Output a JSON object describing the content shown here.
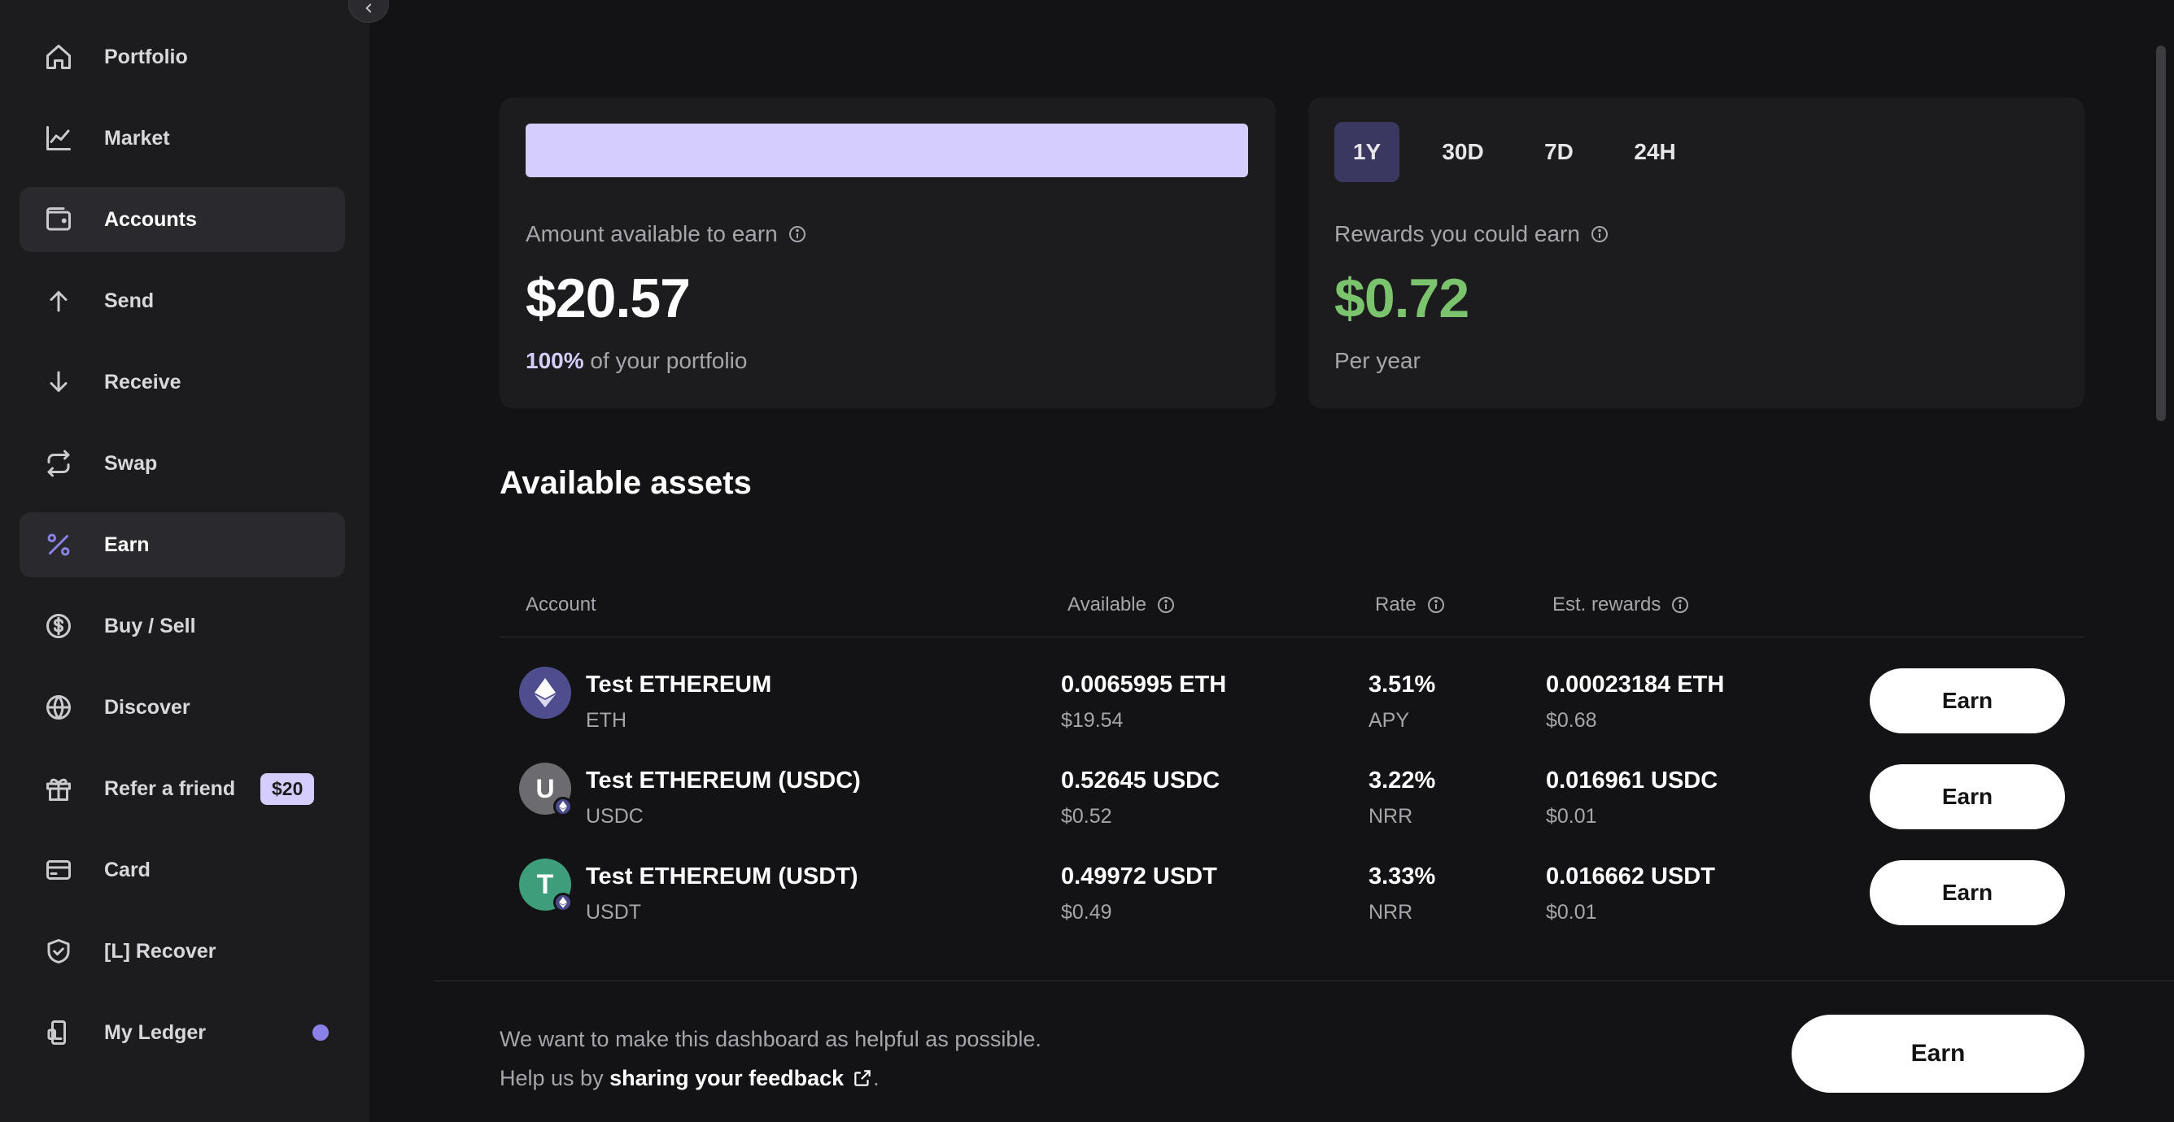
{
  "sidebar": {
    "items": [
      {
        "label": "Portfolio",
        "icon": "home-icon"
      },
      {
        "label": "Market",
        "icon": "chart-icon"
      },
      {
        "label": "Accounts",
        "icon": "wallet-icon"
      },
      {
        "label": "Send",
        "icon": "arrow-up-icon"
      },
      {
        "label": "Receive",
        "icon": "arrow-down-icon"
      },
      {
        "label": "Swap",
        "icon": "swap-icon"
      },
      {
        "label": "Earn",
        "icon": "percent-icon"
      },
      {
        "label": "Buy / Sell",
        "icon": "dollar-icon"
      },
      {
        "label": "Discover",
        "icon": "globe-icon"
      },
      {
        "label": "Refer a friend",
        "icon": "gift-icon",
        "badge": "$20"
      },
      {
        "label": "Card",
        "icon": "card-icon"
      },
      {
        "label": "[L] Recover",
        "icon": "shield-icon"
      },
      {
        "label": "My Ledger",
        "icon": "device-icon"
      }
    ]
  },
  "summary": {
    "available_label": "Amount available to earn",
    "available_amount": "$20.57",
    "portfolio_pct": "100%",
    "portfolio_suffix": " of your portfolio",
    "available_fraction": 1.0,
    "rewards_label": "Rewards you could earn",
    "rewards_amount": "$0.72",
    "rewards_period": "Per year",
    "tabs": [
      "1Y",
      "30D",
      "7D",
      "24H"
    ],
    "active_tab": "1Y"
  },
  "assets": {
    "title": "Available assets",
    "columns": [
      "Account",
      "Available",
      "Rate",
      "Est. rewards"
    ],
    "rows": [
      {
        "name": "Test ETHEREUM",
        "ticker": "ETH",
        "avatar_letter": "",
        "available": "0.0065995 ETH",
        "available_usd": "$19.54",
        "rate": "3.51%",
        "rate_type": "APY",
        "rewards": "0.00023184 ETH",
        "rewards_usd": "$0.68",
        "button": "Earn",
        "color": "#4e4e8f"
      },
      {
        "name": "Test ETHEREUM (USDC)",
        "ticker": "USDC",
        "avatar_letter": "U",
        "available": "0.52645 USDC",
        "available_usd": "$0.52",
        "rate": "3.22%",
        "rate_type": "NRR",
        "rewards": "0.016961 USDC",
        "rewards_usd": "$0.01",
        "button": "Earn",
        "color": "#6b6b70"
      },
      {
        "name": "Test ETHEREUM (USDT)",
        "ticker": "USDT",
        "avatar_letter": "T",
        "available": "0.49972 USDT",
        "available_usd": "$0.49",
        "rate": "3.33%",
        "rate_type": "NRR",
        "rewards": "0.016662 USDT",
        "rewards_usd": "$0.01",
        "button": "Earn",
        "color": "#3e9d7a"
      }
    ]
  },
  "feedback": {
    "line1": "We want to make this dashboard as helpful as possible.",
    "line2_prefix": "Help us by ",
    "link": "sharing your feedback",
    "line2_suffix": ".",
    "button": "Earn"
  },
  "colors": {
    "accent": "#d4cdfd",
    "green": "#7cc36d",
    "background": "#131214"
  }
}
